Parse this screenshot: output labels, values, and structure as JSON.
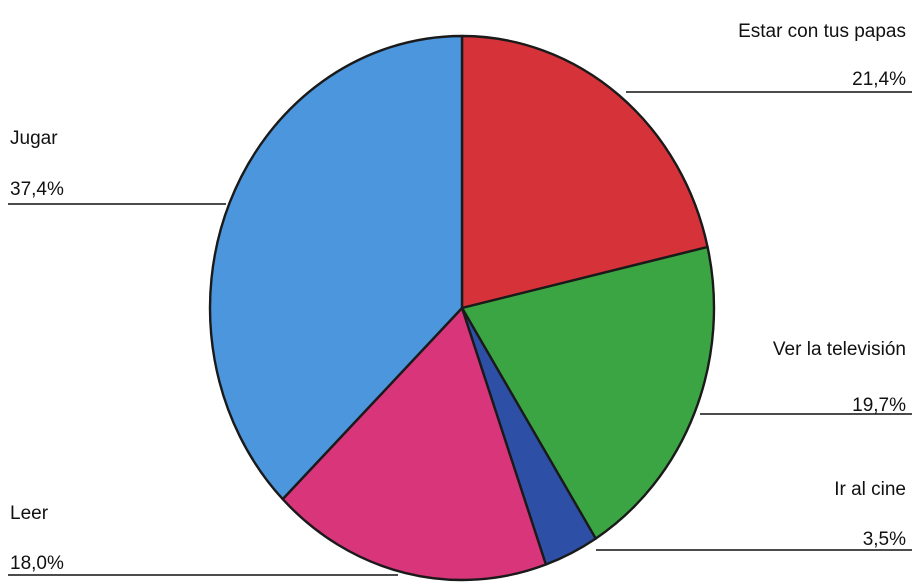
{
  "chart_data": {
    "type": "pie",
    "title": "",
    "start_angle_deg": 0,
    "direction": "clockwise",
    "slices": [
      {
        "label": "Estar con tus papas",
        "value": 21.4,
        "value_label": "21,4%",
        "color": "#d6323a"
      },
      {
        "label": "Ver la televisión",
        "value": 19.7,
        "value_label": "19,7%",
        "color": "#3ba443"
      },
      {
        "label": "Ir al cine",
        "value": 3.5,
        "value_label": "3,5%",
        "color": "#2d4fa6"
      },
      {
        "label": "Leer",
        "value": 18.0,
        "value_label": "18,0%",
        "color": "#d8357a"
      },
      {
        "label": "Jugar",
        "value": 37.4,
        "value_label": "37,4%",
        "color": "#4b96dd"
      }
    ]
  }
}
